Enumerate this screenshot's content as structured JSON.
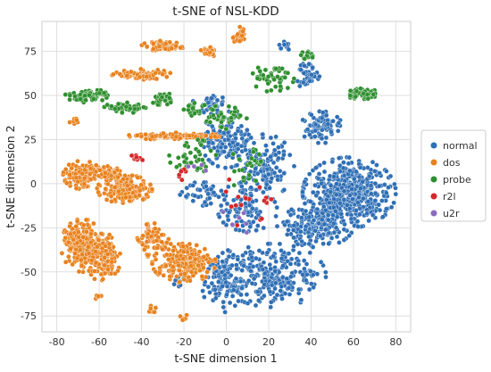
{
  "chart_data": {
    "type": "scatter",
    "title": "t-SNE of NSL-KDD",
    "xlabel": "t-SNE dimension 1",
    "ylabel": "t-SNE dimension 2",
    "xlim": [
      -87,
      87
    ],
    "ylim": [
      -84,
      92
    ],
    "x_ticks": [
      -80,
      -60,
      -40,
      -20,
      0,
      20,
      40,
      60,
      80
    ],
    "y_ticks": [
      -75,
      -50,
      -25,
      0,
      25,
      50,
      75
    ],
    "grid": true,
    "legend_position": "right",
    "series": [
      {
        "name": "normal",
        "color": "#2f6fb5",
        "clusters": [
          {
            "cx": 58,
            "cy": -5,
            "rx": 22,
            "ry": 20,
            "n": 520
          },
          {
            "cx": 42,
            "cy": -24,
            "rx": 18,
            "ry": 12,
            "n": 170
          },
          {
            "cx": 22,
            "cy": -52,
            "rx": 25,
            "ry": 18,
            "n": 260
          },
          {
            "cx": -2,
            "cy": -55,
            "rx": 10,
            "ry": 18,
            "n": 110
          },
          {
            "cx": 0,
            "cy": 25,
            "rx": 12,
            "ry": 16,
            "n": 130
          },
          {
            "cx": 18,
            "cy": 10,
            "rx": 14,
            "ry": 18,
            "n": 130
          },
          {
            "cx": 45,
            "cy": 32,
            "rx": 10,
            "ry": 9,
            "n": 80
          },
          {
            "cx": 38,
            "cy": 62,
            "rx": 6,
            "ry": 8,
            "n": 40
          },
          {
            "cx": 10,
            "cy": -15,
            "rx": 14,
            "ry": 12,
            "n": 90
          },
          {
            "cx": -8,
            "cy": 45,
            "rx": 8,
            "ry": 7,
            "n": 35
          },
          {
            "cx": 28,
            "cy": 78,
            "rx": 3,
            "ry": 3,
            "n": 12
          },
          {
            "cx": -22,
            "cy": -55,
            "rx": 3,
            "ry": 4,
            "n": 10
          },
          {
            "cx": -10,
            "cy": -5,
            "rx": 12,
            "ry": 8,
            "n": 45
          }
        ]
      },
      {
        "name": "dos",
        "color": "#e8821e",
        "clusters": [
          {
            "cx": -68,
            "cy": -35,
            "rx": 10,
            "ry": 15,
            "n": 260
          },
          {
            "cx": -58,
            "cy": -42,
            "rx": 8,
            "ry": 14,
            "n": 150
          },
          {
            "cx": -20,
            "cy": -45,
            "rx": 15,
            "ry": 11,
            "n": 200
          },
          {
            "cx": -34,
            "cy": -32,
            "rx": 8,
            "ry": 10,
            "n": 80
          },
          {
            "cx": -48,
            "cy": -3,
            "rx": 13,
            "ry": 8,
            "n": 160
          },
          {
            "cx": -68,
            "cy": 5,
            "rx": 9,
            "ry": 8,
            "n": 130
          },
          {
            "cx": -56,
            "cy": 6,
            "rx": 6,
            "ry": 4,
            "n": 50
          },
          {
            "cx": -25,
            "cy": 27,
            "rx": 22,
            "ry": 2,
            "n": 100
          },
          {
            "cx": -40,
            "cy": 62,
            "rx": 14,
            "ry": 3,
            "n": 80
          },
          {
            "cx": -30,
            "cy": 78,
            "rx": 10,
            "ry": 3,
            "n": 70
          },
          {
            "cx": -8,
            "cy": 75,
            "rx": 4,
            "ry": 3,
            "n": 25
          },
          {
            "cx": 6,
            "cy": 84,
            "rx": 3,
            "ry": 5,
            "n": 25
          },
          {
            "cx": -60,
            "cy": -64,
            "rx": 2,
            "ry": 2,
            "n": 6
          },
          {
            "cx": -35,
            "cy": -72,
            "rx": 2,
            "ry": 3,
            "n": 6
          },
          {
            "cx": -20,
            "cy": -76,
            "rx": 2,
            "ry": 2,
            "n": 6
          },
          {
            "cx": -72,
            "cy": 35,
            "rx": 3,
            "ry": 2,
            "n": 8
          }
        ]
      },
      {
        "name": "probe",
        "color": "#2f8f2f",
        "clusters": [
          {
            "cx": -66,
            "cy": 50,
            "rx": 10,
            "ry": 4,
            "n": 60
          },
          {
            "cx": -48,
            "cy": 43,
            "rx": 10,
            "ry": 3,
            "n": 50
          },
          {
            "cx": -30,
            "cy": 48,
            "rx": 6,
            "ry": 4,
            "n": 30
          },
          {
            "cx": 64,
            "cy": 51,
            "rx": 8,
            "ry": 3,
            "n": 60
          },
          {
            "cx": 22,
            "cy": 60,
            "rx": 10,
            "ry": 8,
            "n": 45
          },
          {
            "cx": 0,
            "cy": 38,
            "rx": 10,
            "ry": 7,
            "n": 40
          },
          {
            "cx": -15,
            "cy": 15,
            "rx": 12,
            "ry": 10,
            "n": 40
          },
          {
            "cx": 10,
            "cy": 8,
            "rx": 10,
            "ry": 12,
            "n": 25
          },
          {
            "cx": -15,
            "cy": 42,
            "rx": 6,
            "ry": 5,
            "n": 20
          },
          {
            "cx": 38,
            "cy": 73,
            "rx": 5,
            "ry": 3,
            "n": 15
          }
        ]
      },
      {
        "name": "r2l",
        "color": "#d62728",
        "clusters": [
          {
            "cx": -42,
            "cy": 15,
            "rx": 4,
            "ry": 2,
            "n": 8
          },
          {
            "cx": 8,
            "cy": -10,
            "rx": 14,
            "ry": 14,
            "n": 14
          },
          {
            "cx": 20,
            "cy": -10,
            "rx": 4,
            "ry": 3,
            "n": 5
          },
          {
            "cx": -20,
            "cy": 5,
            "rx": 5,
            "ry": 4,
            "n": 6
          }
        ]
      },
      {
        "name": "u2r",
        "color": "#8c6bbf",
        "clusters": [
          {
            "cx": 10,
            "cy": -20,
            "rx": 12,
            "ry": 14,
            "n": 6
          },
          {
            "cx": -12,
            "cy": 10,
            "rx": 6,
            "ry": 6,
            "n": 4
          }
        ]
      }
    ]
  }
}
